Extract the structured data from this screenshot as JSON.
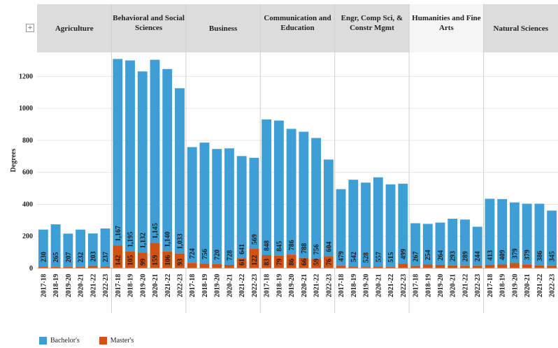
{
  "expand_icon_glyph": "+",
  "chart_data": {
    "type": "bar",
    "stacked": true,
    "ylabel": "Degrees",
    "ylim": [
      0,
      1350
    ],
    "yticks": [
      0,
      200,
      400,
      600,
      800,
      1000,
      1200
    ],
    "grid": true,
    "legend_position": "bottom-left",
    "colors": {
      "bachelors": "#3e9fd6",
      "masters": "#d25212"
    },
    "panels": [
      {
        "name": "Agriculture",
        "highlight": false,
        "categories": [
          "2017-18",
          "2018-19",
          "2019-20",
          "2020-21",
          "2021-22",
          "2022-23"
        ],
        "bachelors": [
          230,
          265,
          207,
          232,
          203,
          237
        ],
        "masters": [
          12,
          10,
          10,
          10,
          15,
          12
        ],
        "masters_labels": [
          null,
          null,
          null,
          null,
          null,
          null
        ]
      },
      {
        "name": "Behavioral and Social Sciences",
        "highlight": false,
        "categories": [
          "2017-18",
          "2018-19",
          "2019-20",
          "2020-21",
          "2021-22",
          "2022-23"
        ],
        "bachelors": [
          1167,
          1195,
          1132,
          1145,
          1140,
          1033
        ],
        "masters": [
          142,
          105,
          99,
          159,
          106,
          93
        ],
        "masters_labels": [
          142,
          105,
          99,
          159,
          106,
          93
        ]
      },
      {
        "name": "Business",
        "highlight": false,
        "categories": [
          "2017-18",
          "2018-19",
          "2019-20",
          "2020-21",
          "2021-22",
          "2022-23"
        ],
        "bachelors": [
          724,
          756,
          720,
          728,
          641,
          569
        ],
        "masters": [
          34,
          30,
          26,
          22,
          61,
          122
        ],
        "masters_labels": [
          null,
          null,
          null,
          null,
          61,
          122
        ]
      },
      {
        "name": "Communication and Education",
        "highlight": false,
        "categories": [
          "2017-18",
          "2018-19",
          "2019-20",
          "2020-21",
          "2021-22",
          "2022-23"
        ],
        "bachelors": [
          848,
          845,
          786,
          788,
          756,
          604
        ],
        "masters": [
          83,
          79,
          86,
          66,
          59,
          76
        ],
        "masters_labels": [
          83,
          79,
          86,
          66,
          59,
          76
        ]
      },
      {
        "name": "Engr, Comp Sci, & Constr Mgmt",
        "highlight": false,
        "categories": [
          "2017-18",
          "2018-19",
          "2019-20",
          "2020-21",
          "2021-22",
          "2022-23"
        ],
        "bachelors": [
          479,
          542,
          528,
          557,
          515,
          499
        ],
        "masters": [
          16,
          12,
          8,
          12,
          10,
          30
        ],
        "masters_labels": [
          null,
          null,
          null,
          null,
          null,
          null
        ]
      },
      {
        "name": "Humanities and Fine Arts",
        "highlight": true,
        "categories": [
          "2017-18",
          "2018-19",
          "2019-20",
          "2020-21",
          "2021-22",
          "2022-23"
        ],
        "bachelors": [
          267,
          254,
          264,
          293,
          289,
          244
        ],
        "masters": [
          15,
          24,
          22,
          17,
          16,
          16
        ],
        "masters_labels": [
          null,
          null,
          null,
          null,
          null,
          null
        ]
      },
      {
        "name": "Natural Sciences",
        "highlight": false,
        "categories": [
          "2017-18",
          "2018-19",
          "2019-20",
          "2020-21",
          "2021-22",
          "2022-23"
        ],
        "bachelors": [
          413,
          409,
          379,
          379,
          386,
          345
        ],
        "masters": [
          22,
          24,
          33,
          25,
          18,
          16
        ],
        "masters_labels": [
          null,
          null,
          null,
          null,
          null,
          null
        ]
      }
    ],
    "legend": [
      {
        "key": "bachelors",
        "label": "Bachelor's"
      },
      {
        "key": "masters",
        "label": "Master's"
      }
    ]
  }
}
